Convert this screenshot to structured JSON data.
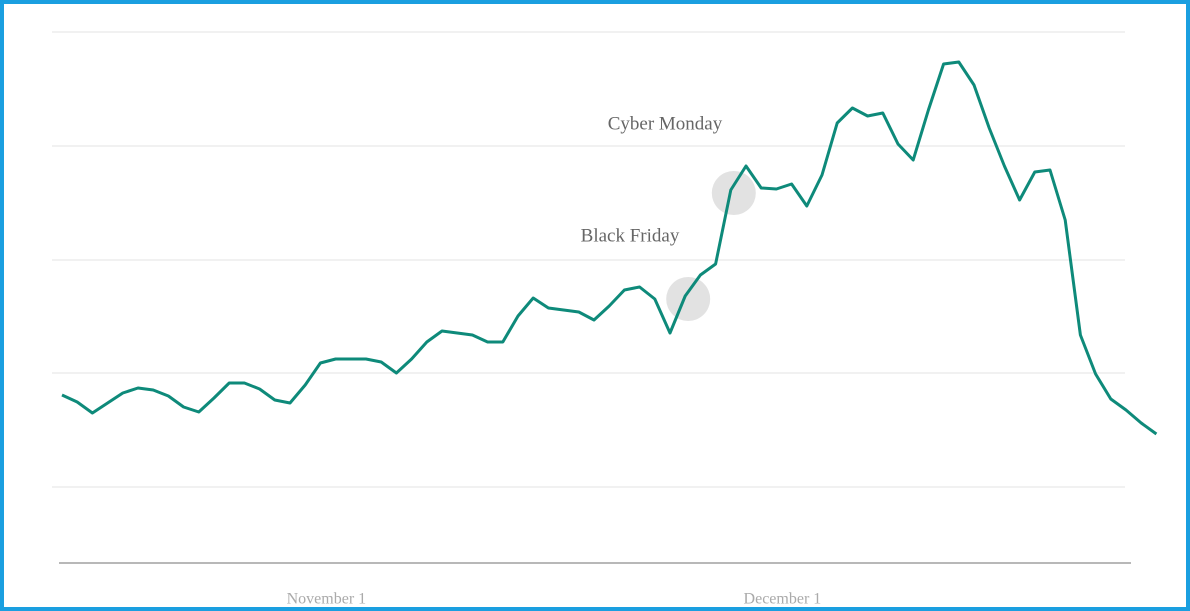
{
  "chart_data": {
    "type": "line",
    "categories": [
      null,
      null,
      null,
      null,
      null,
      null,
      null,
      null,
      null,
      null,
      null,
      null,
      null,
      null,
      null,
      null,
      null,
      "November 1",
      null,
      null,
      null,
      null,
      null,
      null,
      null,
      null,
      null,
      null,
      null,
      null,
      null,
      null,
      null,
      null,
      null,
      null,
      null,
      null,
      null,
      null,
      null,
      null,
      null,
      null,
      null,
      null,
      null,
      "December 1",
      null,
      null,
      null,
      null,
      null,
      null,
      null,
      null,
      null,
      null,
      null,
      null,
      null,
      null,
      null,
      null,
      null,
      null,
      null,
      null,
      null,
      null,
      null,
      null,
      null
    ],
    "series": [
      {
        "name": null,
        "color": "#0e8a7a",
        "values": [
          168,
          161,
          150,
          160,
          170,
          175,
          173,
          167,
          156,
          151,
          165,
          180,
          180,
          174,
          163,
          160,
          178,
          200,
          204,
          204,
          204,
          201,
          190,
          204,
          221,
          232,
          230,
          228,
          221,
          221,
          247,
          265,
          255,
          253,
          251,
          243,
          257,
          273,
          276,
          264,
          230,
          267,
          288,
          299,
          373,
          397,
          375,
          374,
          379,
          357,
          388,
          440,
          455,
          447,
          450,
          419,
          403,
          453,
          499,
          501,
          478,
          435,
          397,
          363,
          391,
          393,
          343,
          228,
          189,
          164,
          153,
          140,
          129
        ]
      }
    ],
    "annotations": [
      "Black Friday",
      "Cyber Monday"
    ],
    "ylim": [
      0,
      531
    ],
    "gridlines": [
      76,
      190,
      303,
      417,
      531
    ]
  }
}
